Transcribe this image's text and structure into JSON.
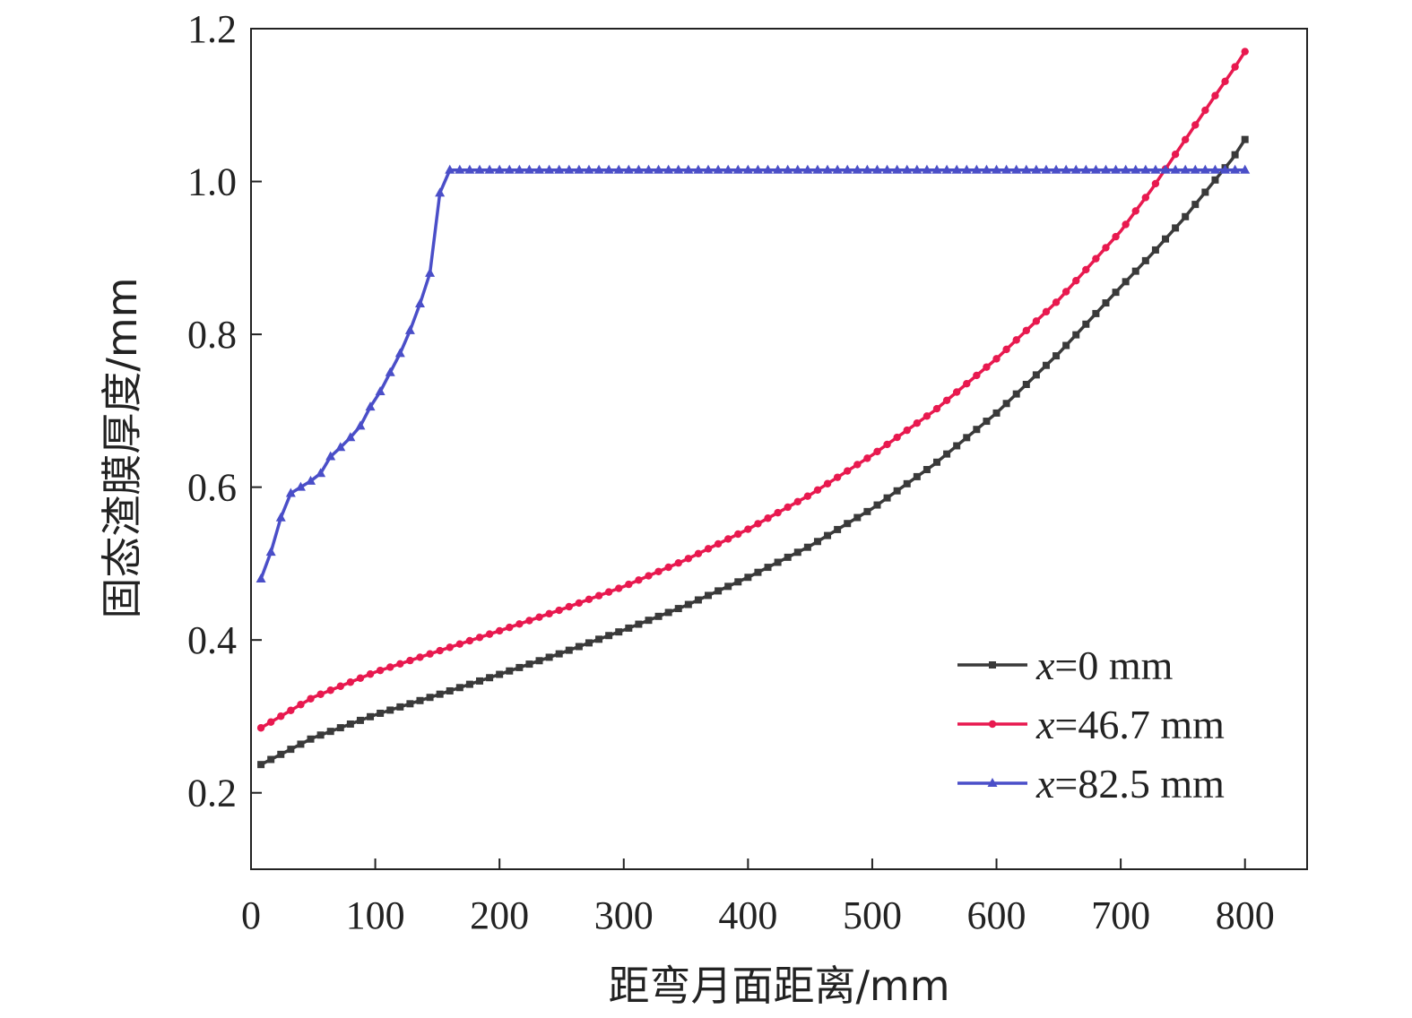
{
  "chart_data": {
    "type": "line",
    "title": "",
    "xlabel": "距弯月面距离/mm",
    "ylabel": "固态渣膜厚度/mm",
    "xlim": [
      0,
      850
    ],
    "ylim": [
      0.1,
      1.2
    ],
    "x_ticks": [
      "0",
      "100",
      "200",
      "300",
      "400",
      "500",
      "600",
      "700",
      "800"
    ],
    "y_ticks": [
      "0.2",
      "0.4",
      "0.6",
      "0.8",
      "1.0",
      "1.2"
    ],
    "grid": false,
    "legend": {
      "position": "bottom-right"
    },
    "series": [
      {
        "name": "x=0 mm",
        "var": "x",
        "rest": "=0 mm",
        "color": "#3a3a3a",
        "marker": "square",
        "x": [
          8,
          50,
          100,
          150,
          200,
          250,
          300,
          350,
          400,
          450,
          500,
          550,
          600,
          650,
          700,
          725,
          750,
          775,
          790,
          800
        ],
        "y": [
          0.237,
          0.272,
          0.302,
          0.328,
          0.355,
          0.383,
          0.413,
          0.445,
          0.482,
          0.523,
          0.572,
          0.63,
          0.697,
          0.775,
          0.862,
          0.905,
          0.95,
          1.0,
          1.03,
          1.055
        ]
      },
      {
        "name": "x=46.7 mm",
        "var": "x",
        "rest": "=46.7 mm",
        "color": "#e8194f",
        "marker": "circle",
        "x": [
          8,
          50,
          100,
          150,
          200,
          250,
          300,
          350,
          400,
          450,
          500,
          550,
          600,
          650,
          700,
          725,
          750,
          775,
          790,
          800
        ],
        "y": [
          0.285,
          0.325,
          0.358,
          0.385,
          0.412,
          0.44,
          0.47,
          0.505,
          0.545,
          0.59,
          0.642,
          0.7,
          0.768,
          0.845,
          0.935,
          0.99,
          1.05,
          1.11,
          1.145,
          1.17
        ]
      },
      {
        "name": "x=82.5 mm",
        "var": "x",
        "rest": "=82.5 mm",
        "color": "#4a4ec8",
        "marker": "triangle",
        "x": [
          8,
          16,
          24,
          32,
          40,
          48,
          56,
          64,
          72,
          80,
          88,
          96,
          104,
          112,
          120,
          128,
          136,
          144,
          152,
          160,
          200,
          300,
          400,
          500,
          600,
          700,
          800
        ],
        "y": [
          0.48,
          0.515,
          0.56,
          0.592,
          0.6,
          0.608,
          0.618,
          0.64,
          0.652,
          0.665,
          0.68,
          0.705,
          0.725,
          0.75,
          0.775,
          0.805,
          0.84,
          0.88,
          0.985,
          1.015,
          1.015,
          1.015,
          1.015,
          1.015,
          1.015,
          1.015,
          1.015
        ]
      }
    ]
  }
}
